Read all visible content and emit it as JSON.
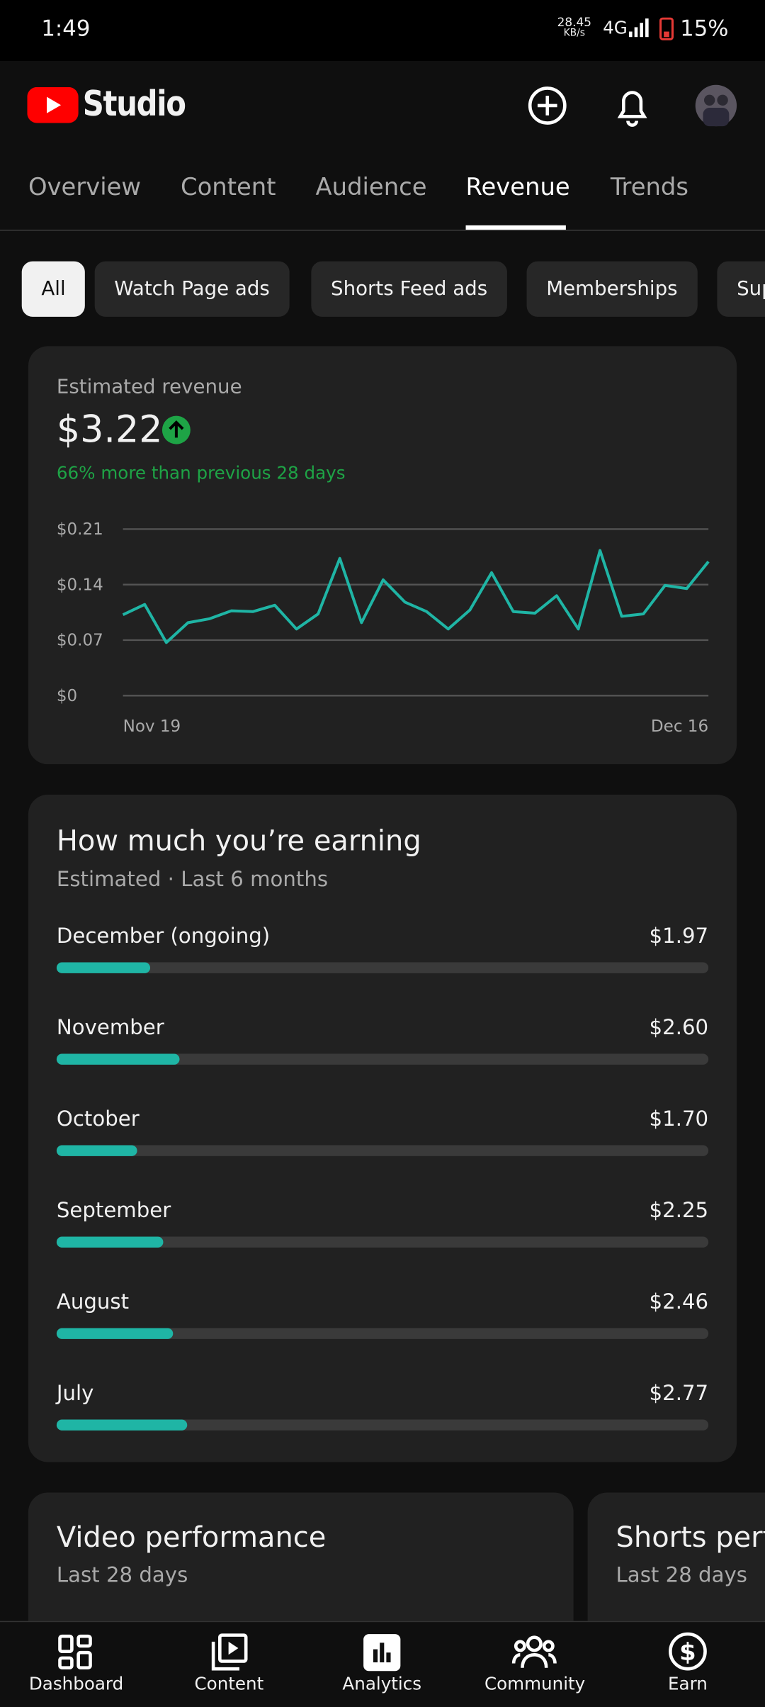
{
  "status_bar": {
    "time": "1:49",
    "speed": "28.45",
    "speed_unit": "KB/s",
    "network": "4G",
    "battery": "15%"
  },
  "header": {
    "app": "Studio"
  },
  "tabs": [
    "Overview",
    "Content",
    "Audience",
    "Revenue",
    "Trends"
  ],
  "active_tab": 3,
  "chips": [
    "All",
    "Watch Page ads",
    "Shorts Feed ads",
    "Memberships",
    "Sup"
  ],
  "active_chip": 0,
  "revenue_card": {
    "label": "Estimated revenue",
    "total": "$3.22",
    "change": "66% more than previous 28 days",
    "chart_data": {
      "type": "line",
      "color": "#1fb5a5",
      "categories": [
        "Nov 19",
        null,
        null,
        null,
        null,
        null,
        null,
        null,
        null,
        null,
        null,
        null,
        null,
        null,
        null,
        null,
        null,
        null,
        null,
        null,
        null,
        null,
        null,
        null,
        null,
        null,
        null,
        "Dec 16"
      ],
      "values": [
        0.102,
        0.115,
        0.067,
        0.092,
        0.097,
        0.107,
        0.106,
        0.114,
        0.084,
        0.103,
        0.173,
        0.092,
        0.146,
        0.118,
        0.106,
        0.084,
        0.108,
        0.155,
        0.106,
        0.104,
        0.126,
        0.084,
        0.183,
        0.1,
        0.103,
        0.139,
        0.135,
        0.169
      ],
      "ylim": [
        0,
        0.21
      ],
      "yticks": [
        {
          "value": 0,
          "label": "$0"
        },
        {
          "value": 0.07,
          "label": "$0.07"
        },
        {
          "value": 0.14,
          "label": "$0.14"
        },
        {
          "value": 0.21,
          "label": "$0.21"
        }
      ],
      "grid": true
    }
  },
  "earnings_card": {
    "title": "How much you’re earning",
    "subtitle": "Estimated",
    "period": "Last 6 months",
    "chart_data": {
      "type": "bar",
      "color": "#1fb5a5",
      "categories": [
        "December (ongoing)",
        "November",
        "October",
        "September",
        "August",
        "July"
      ],
      "values": [
        1.97,
        2.6,
        1.7,
        2.25,
        2.46,
        2.77
      ],
      "value_labels": [
        "$1.97",
        "$2.60",
        "$1.70",
        "$2.25",
        "$2.46",
        "$2.77"
      ],
      "xlim": [
        0,
        13.8
      ]
    }
  },
  "performance_cards": [
    {
      "title": "Video performance",
      "period": "Last 28 days"
    },
    {
      "title": "Shorts perf",
      "period": "Last 28 days"
    }
  ],
  "nav": [
    "Dashboard",
    "Content",
    "Analytics",
    "Community",
    "Earn"
  ]
}
